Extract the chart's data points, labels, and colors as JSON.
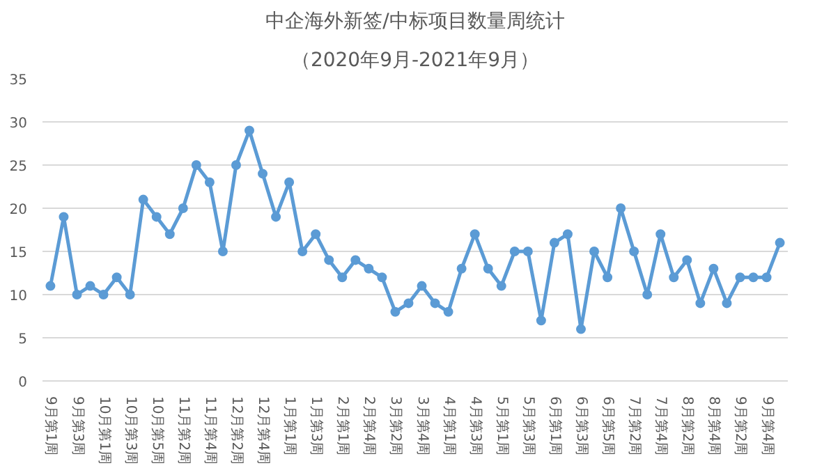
{
  "chart_data": {
    "type": "line",
    "title": "中企海外新签/中标项目数量周统计",
    "subtitle": "（2020年9月-2021年9月）",
    "categories": [
      "9月第1周",
      null,
      "9月第3周",
      null,
      "10月第1周",
      null,
      "10月第3周",
      null,
      "10月第5周",
      null,
      "11月第2周",
      null,
      "11月第4周",
      null,
      "12月第2周",
      null,
      "12月第4周",
      null,
      "1月第1周",
      null,
      "1月第3周",
      null,
      "2月第1周",
      null,
      "2月第4周",
      null,
      "3月第2周",
      null,
      "3月第4周",
      null,
      "4月第1周",
      null,
      "4月第3周",
      null,
      "5月第1周",
      null,
      "5月第3周",
      null,
      "6月第1周",
      null,
      "6月第3周",
      null,
      "6月第5周",
      null,
      "7月第2周",
      null,
      "7月第4周",
      null,
      "8月第2周",
      null,
      "8月第4周",
      null,
      "9月第2周",
      null,
      "9月第4周",
      null
    ],
    "series": [
      {
        "color": "#5b9bd5",
        "values": [
          11,
          19,
          10,
          11,
          10,
          12,
          10,
          21,
          19,
          17,
          20,
          25,
          23,
          15,
          25,
          29,
          24,
          19,
          23,
          15,
          17,
          14,
          12,
          14,
          13,
          12,
          8,
          9,
          11,
          9,
          8,
          13,
          17,
          13,
          11,
          15,
          15,
          7,
          16,
          17,
          6,
          15,
          12,
          20,
          15,
          10,
          17,
          12,
          14,
          9,
          13,
          9,
          12,
          12,
          12,
          16
        ]
      }
    ],
    "ylim": [
      0,
      35
    ],
    "yticks": [
      0,
      5,
      10,
      15,
      20,
      25,
      30,
      35
    ],
    "grid": "y",
    "marker": "circle",
    "line_style": "solid"
  }
}
